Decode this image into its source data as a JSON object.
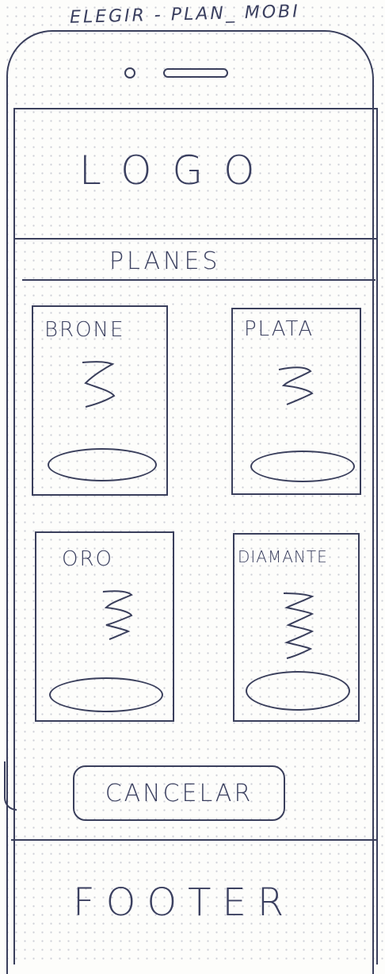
{
  "page_title": "ELEGIR - PLAN_ MOBI",
  "header": {
    "logo_text": "LOGO"
  },
  "section": {
    "title": "PLANES"
  },
  "plans": [
    {
      "name": "BRONE"
    },
    {
      "name": "PLATA"
    },
    {
      "name": "ORO"
    },
    {
      "name": "DIAMANTE"
    }
  ],
  "actions": {
    "cancel_label": "CANCELAR"
  },
  "footer": {
    "text": "FOOTER"
  },
  "colors": {
    "ink": "#3a3f5c",
    "paper": "#fdfdfb",
    "grid_dot": "#c4c6d0"
  }
}
